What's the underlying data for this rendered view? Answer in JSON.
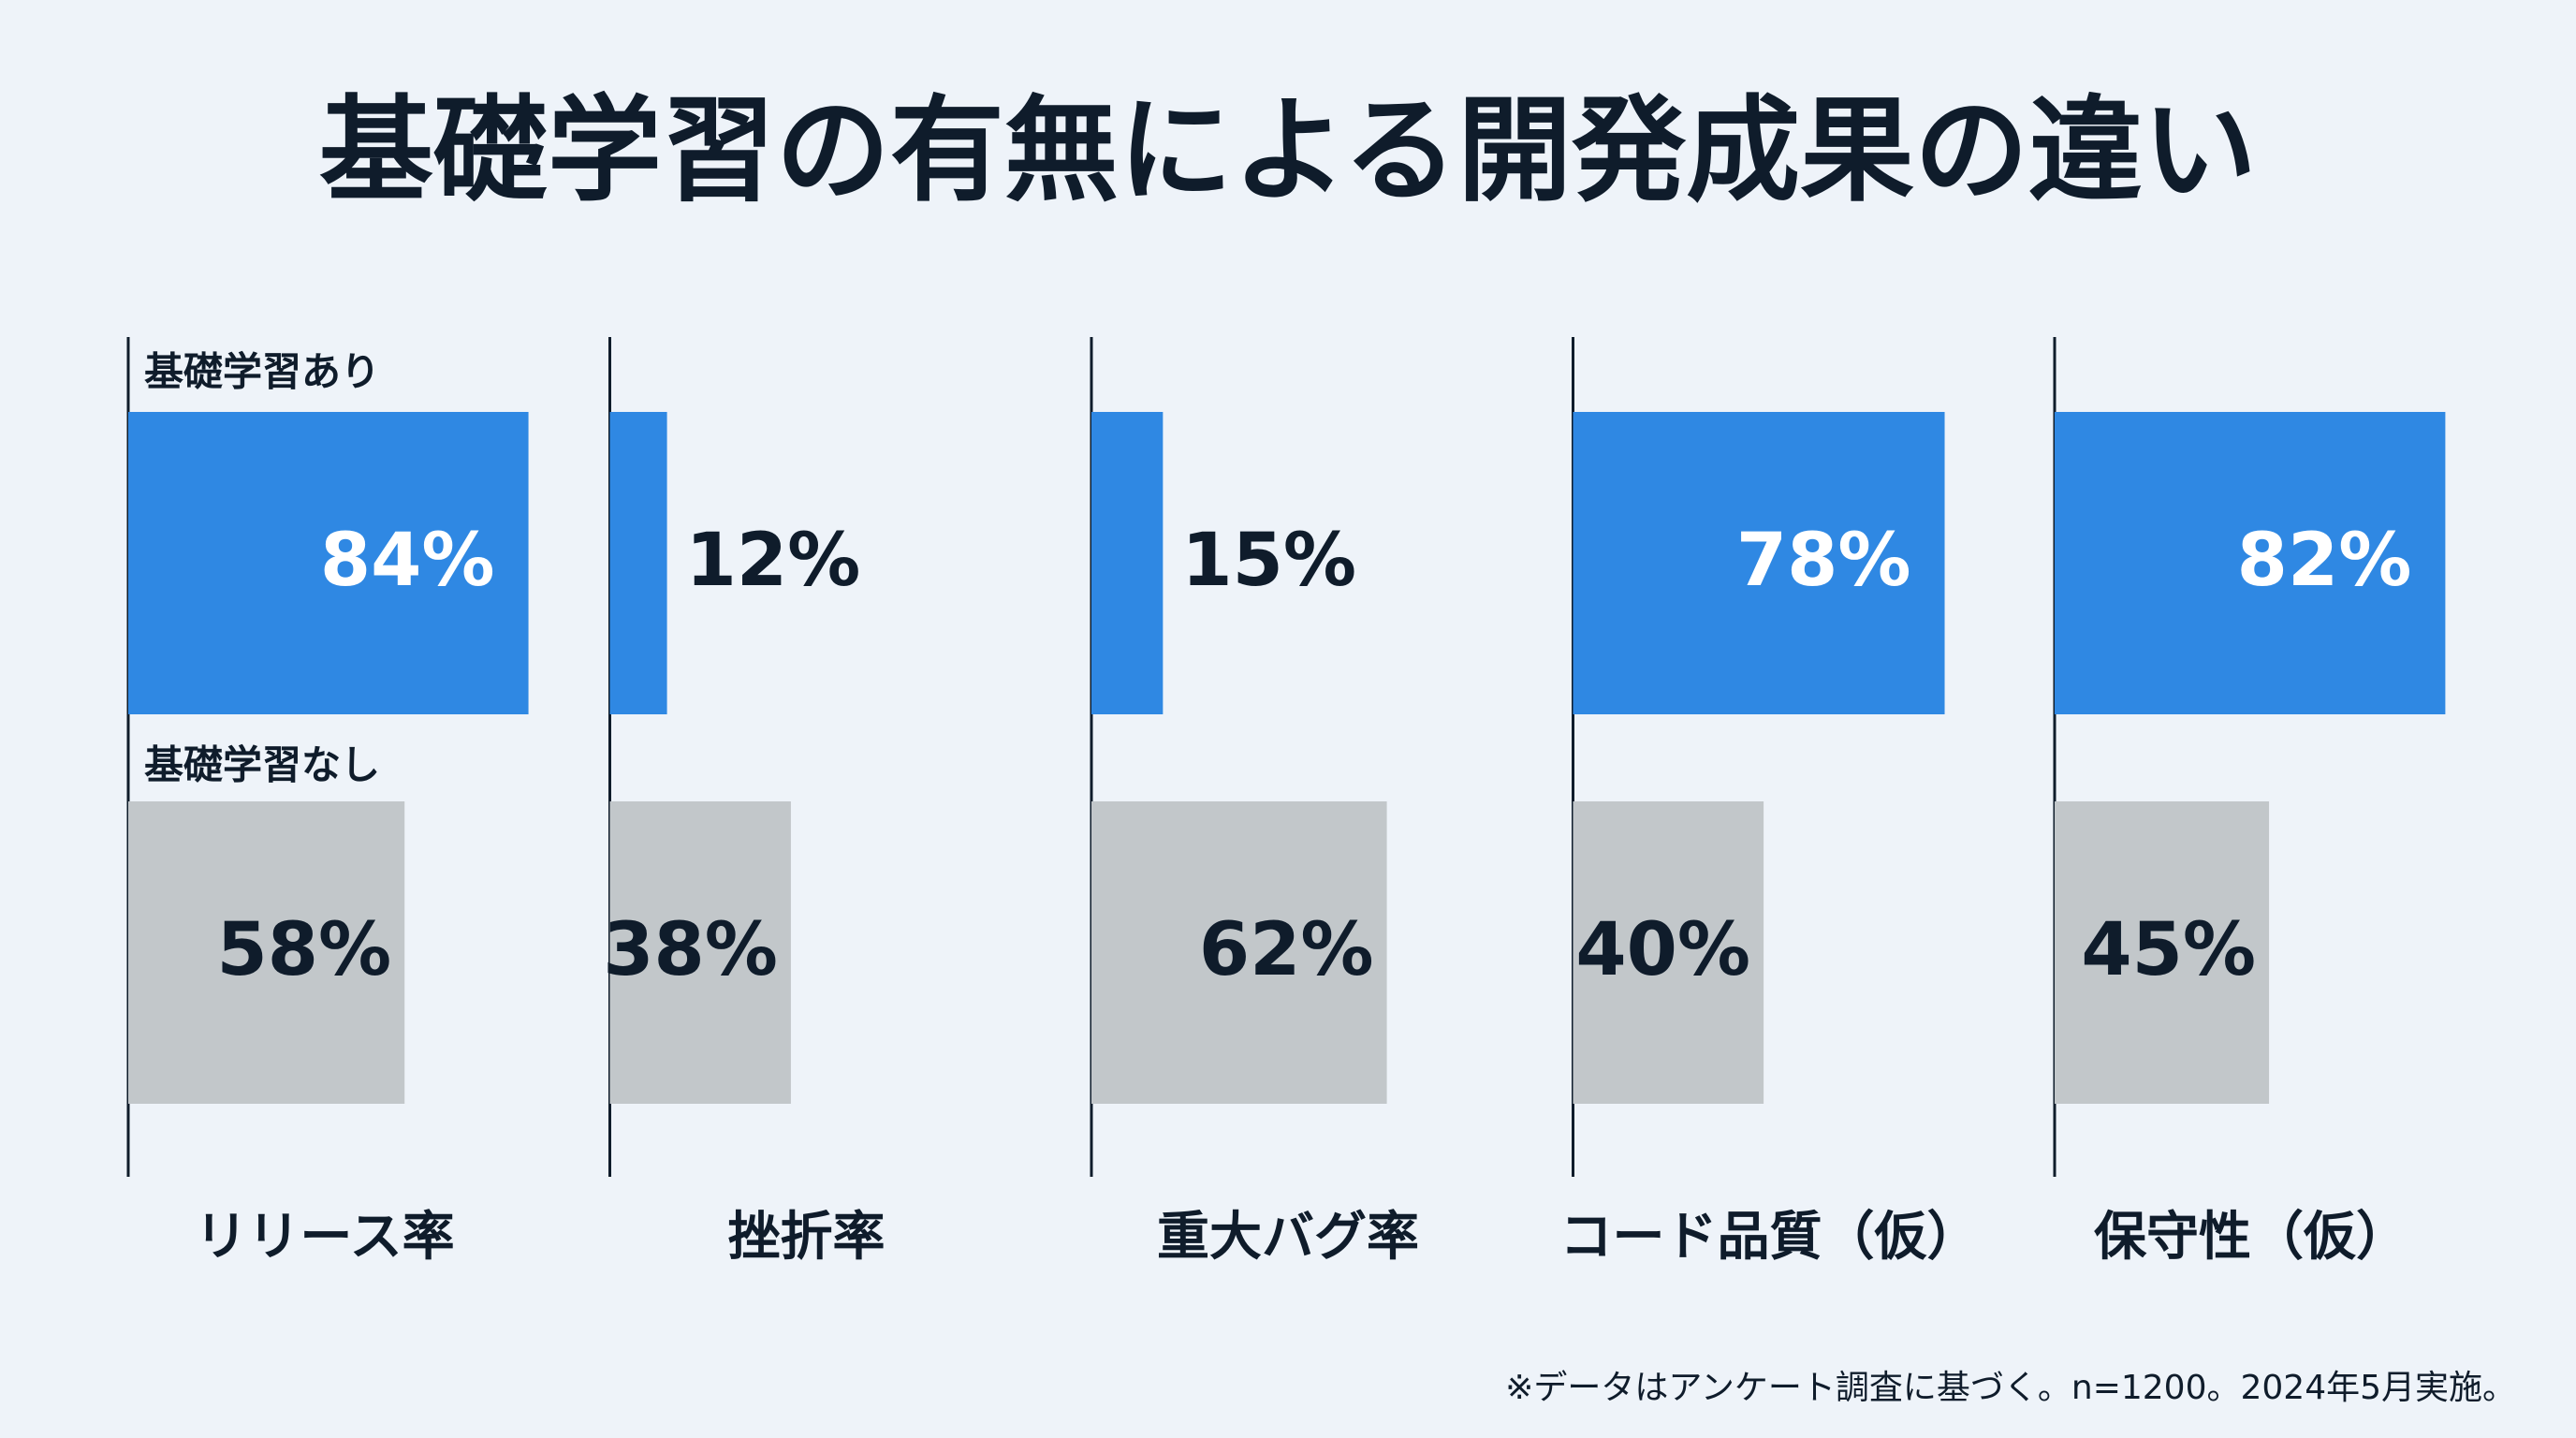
{
  "chart_data": {
    "type": "bar",
    "orientation": "horizontal",
    "title": "基礎学習の有無による開発成果の違い",
    "categories": [
      "リリース率",
      "挫折率",
      "重大バグ率",
      "コード品質（仮）",
      "保守性（仮）"
    ],
    "series": [
      {
        "name": "基礎学習あり",
        "color": "#2f88e3",
        "label_color": "#ffffff",
        "values": [
          84,
          12,
          15,
          78,
          82
        ],
        "value_labels": [
          "84%",
          "12%",
          "15%",
          "78%",
          "82%"
        ]
      },
      {
        "name": "基礎学習なし",
        "color": "#c2c7ca",
        "label_color": "#0f1c2b",
        "values": [
          58,
          38,
          62,
          40,
          45
        ],
        "value_labels": [
          "58%",
          "38%",
          "62%",
          "40%",
          "45%"
        ]
      }
    ],
    "xlim": [
      0,
      100
    ],
    "footnote": "※データはアンケート調査に基づく。n=1200。2024年5月実施。"
  }
}
